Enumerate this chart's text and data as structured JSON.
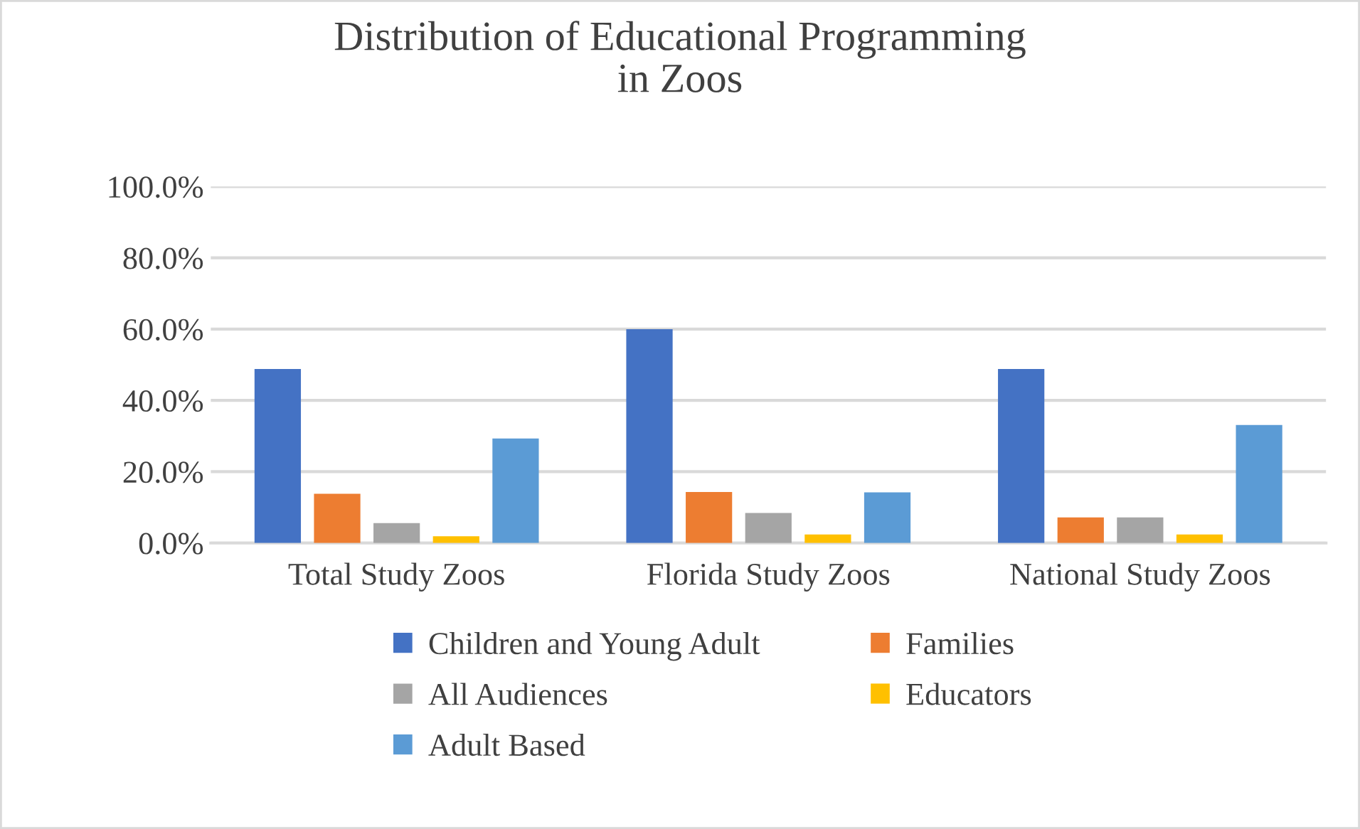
{
  "chart_data": {
    "type": "bar",
    "title": "Distribution of Educational Programming\nin Zoos",
    "categories": [
      "Total Study Zoos",
      "Florida Study Zoos",
      "National Study Zoos"
    ],
    "series": [
      {
        "name": "Children and Young Adult",
        "color": "#4472c4",
        "values": [
          48.8,
          60.0,
          48.8
        ]
      },
      {
        "name": "Families",
        "color": "#ed7d31",
        "values": [
          13.8,
          14.3,
          7.2
        ]
      },
      {
        "name": "All Audiences",
        "color": "#a5a5a5",
        "values": [
          5.6,
          8.4,
          7.2
        ]
      },
      {
        "name": "Educators",
        "color": "#ffc000",
        "values": [
          1.9,
          2.4,
          2.4
        ]
      },
      {
        "name": "Adult Based",
        "color": "#5b9bd5",
        "values": [
          29.3,
          14.2,
          33.1
        ]
      }
    ],
    "ylim": [
      0,
      100
    ],
    "yticks": [
      {
        "value": 0,
        "label": "0.0%"
      },
      {
        "value": 20,
        "label": "20.0%"
      },
      {
        "value": 40,
        "label": "40.0%"
      },
      {
        "value": 60,
        "label": "60.0%"
      },
      {
        "value": 80,
        "label": "80.0%"
      },
      {
        "value": 100,
        "label": "100.0%"
      }
    ],
    "grid": "y",
    "legend": "bottom"
  }
}
